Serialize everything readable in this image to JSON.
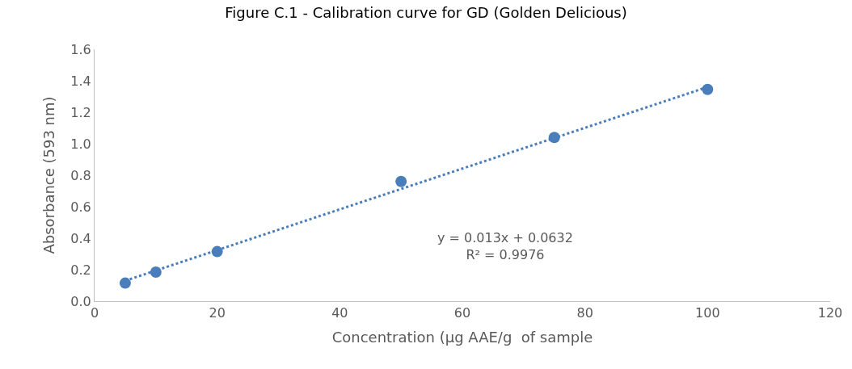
{
  "chart_data": {
    "type": "scatter",
    "title": "Figure C.1 - Calibration curve for GD (Golden Delicious)",
    "xlabel": "Concentration (µg AAE/g  of sample",
    "ylabel": "Absorbance (593 nm)",
    "x": [
      5,
      10,
      20,
      50,
      75,
      100
    ],
    "series": [
      {
        "color": "#4a7ebb",
        "marker": "circle",
        "values": [
          0.115,
          0.185,
          0.315,
          0.76,
          1.04,
          1.345
        ]
      },
      {
        "type": "line",
        "color": "#4a7ebb",
        "line_style": "dotted",
        "marker": "none",
        "x": [
          5,
          100
        ],
        "values": [
          0.13,
          1.36
        ]
      }
    ],
    "annotations": [
      "y = 0.013x + 0.0632",
      "R² = 0.9976"
    ],
    "xlim": [
      0,
      120
    ],
    "xticks": [
      0,
      20,
      40,
      60,
      80,
      100,
      120
    ],
    "ylim": [
      0,
      1.6
    ],
    "yticks": [
      {
        "value": 0,
        "label": "0.0"
      },
      0.2,
      0.4,
      0.6,
      0.8,
      {
        "value": 1,
        "label": "1.0"
      },
      1.2,
      1.4,
      1.6
    ]
  }
}
